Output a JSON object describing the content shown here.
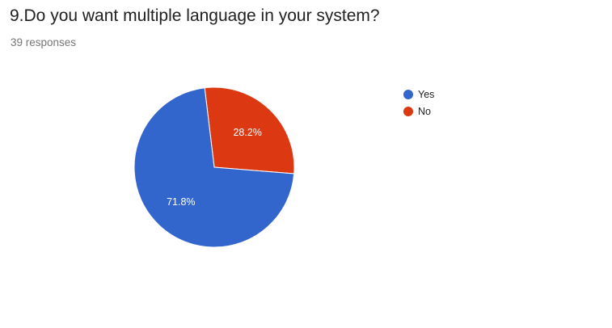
{
  "question": {
    "title": "9.Do you want multiple language in your system?",
    "responses": "39 responses"
  },
  "chart_data": {
    "type": "pie",
    "title": "9.Do you want multiple language in your system?",
    "slices": [
      {
        "label": "Yes",
        "value": 71.8,
        "display": "71.8%",
        "color": "#3366cc"
      },
      {
        "label": "No",
        "value": 28.2,
        "display": "28.2%",
        "color": "#dc3912"
      }
    ],
    "legend_position": "right"
  }
}
